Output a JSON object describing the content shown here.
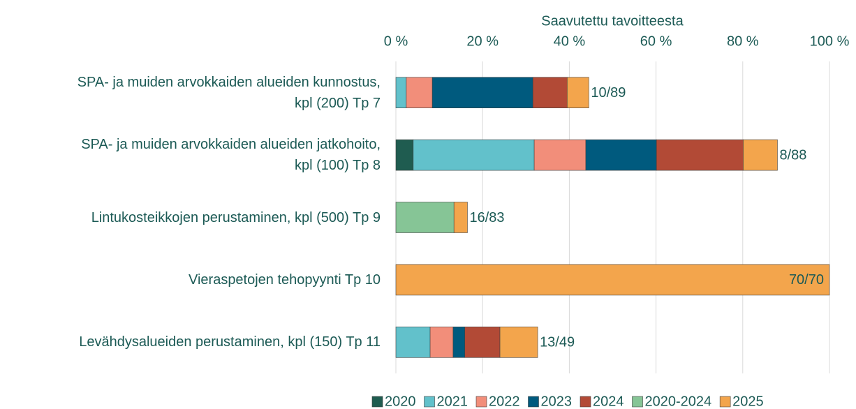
{
  "chart_data": {
    "type": "stacked-barh",
    "xlabel": "Saavutettu tavoitteesta",
    "categories": [
      "SPA- ja muiden arvokkaiden alueiden kunnostus,\nkpl (200) Tp 7",
      "SPA- ja muiden arvokkaiden alueiden jatkohoito,\nkpl (100) Tp 8",
      "Lintukosteikkojen perustaminen, kpl (500) Tp 9",
      "Vieraspetojen tehopyynti Tp 10",
      "Levähdysalueiden perustaminen, kpl (150) Tp 11"
    ],
    "series": [
      {
        "name": "2020",
        "color": "#1f5c50",
        "values": [
          null,
          4.0,
          null,
          null,
          null
        ]
      },
      {
        "name": "2021",
        "color": "#62c1cb",
        "values": [
          2.4,
          27.9,
          null,
          null,
          7.9
        ]
      },
      {
        "name": "2022",
        "color": "#f28e7a",
        "values": [
          6.0,
          11.9,
          null,
          null,
          5.3
        ]
      },
      {
        "name": "2023",
        "color": "#005a7e",
        "values": [
          23.2,
          16.3,
          null,
          null,
          2.7
        ]
      },
      {
        "name": "2024",
        "color": "#b24a36",
        "values": [
          7.9,
          20.0,
          null,
          null,
          8.1
        ]
      },
      {
        "name": "2020-2024",
        "color": "#86c596",
        "values": [
          null,
          null,
          13.4,
          null,
          null
        ]
      },
      {
        "name": "2025",
        "color": "#f3a54c",
        "values": [
          5.0,
          7.9,
          3.1,
          100,
          8.7
        ]
      }
    ],
    "bar_labels": [
      "10/89",
      "8/88",
      "16/83",
      "70/70",
      "13/49"
    ],
    "xlim": [
      0,
      100
    ],
    "xticks": [
      {
        "value": 0,
        "label": "0 %"
      },
      {
        "value": 20,
        "label": "20 %"
      },
      {
        "value": 40,
        "label": "40 %"
      },
      {
        "value": 60,
        "label": "60 %"
      },
      {
        "value": 80,
        "label": "80 %"
      },
      {
        "value": 100,
        "label": "100 %"
      }
    ],
    "grid": true,
    "legend": "bottom"
  }
}
